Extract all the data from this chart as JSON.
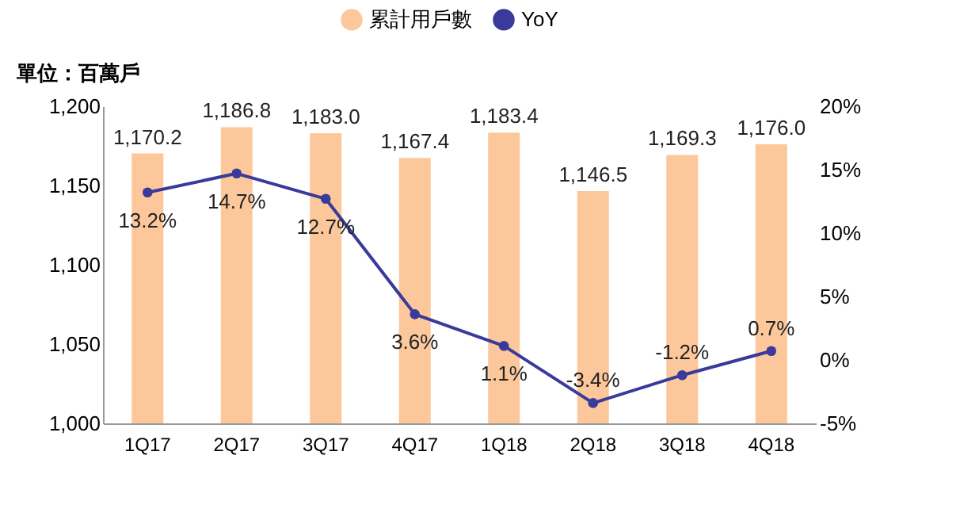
{
  "chart_data": {
    "type": "bar",
    "ylabel": "單位：百萬戶",
    "categories": [
      "1Q17",
      "2Q17",
      "3Q17",
      "4Q17",
      "1Q18",
      "2Q18",
      "3Q18",
      "4Q18"
    ],
    "series": [
      {
        "name": "累計用戶數",
        "color": "#fcc89b",
        "values": [
          1170.2,
          1186.8,
          1183.0,
          1167.4,
          1183.4,
          1146.5,
          1169.3,
          1176.0
        ],
        "value_labels": [
          "1,170.2",
          "1,186.8",
          "1,183.0",
          "1,167.4",
          "1,183.4",
          "1,146.5",
          "1,169.3",
          "1,176.0"
        ]
      },
      {
        "name": "YoY",
        "type": "line",
        "axis": "y2",
        "color": "#3a3a9c",
        "marker": "circle",
        "values": [
          13.2,
          14.7,
          12.7,
          3.6,
          1.1,
          -3.4,
          -1.2,
          0.7
        ],
        "value_labels": [
          "13.2%",
          "14.7%",
          "12.7%",
          "3.6%",
          "1.1%",
          "-3.4%",
          "-1.2%",
          "0.7%"
        ]
      }
    ],
    "ylim": [
      1000,
      1200
    ],
    "yticks": [
      {
        "value": 1000,
        "label": "1,000"
      },
      {
        "value": 1050,
        "label": "1,050"
      },
      {
        "value": 1100,
        "label": "1,100"
      },
      {
        "value": 1150,
        "label": "1,150"
      },
      {
        "value": 1200,
        "label": "1,200"
      }
    ],
    "y2lim": [
      -5,
      20
    ],
    "y2ticks": [
      {
        "value": -5,
        "label": "-5%"
      },
      {
        "value": 0,
        "label": "0%"
      },
      {
        "value": 5,
        "label": "5%"
      },
      {
        "value": 10,
        "label": "10%"
      },
      {
        "value": 15,
        "label": "15%"
      },
      {
        "value": 20,
        "label": "20%"
      }
    ],
    "legend": "top",
    "grid": false
  }
}
